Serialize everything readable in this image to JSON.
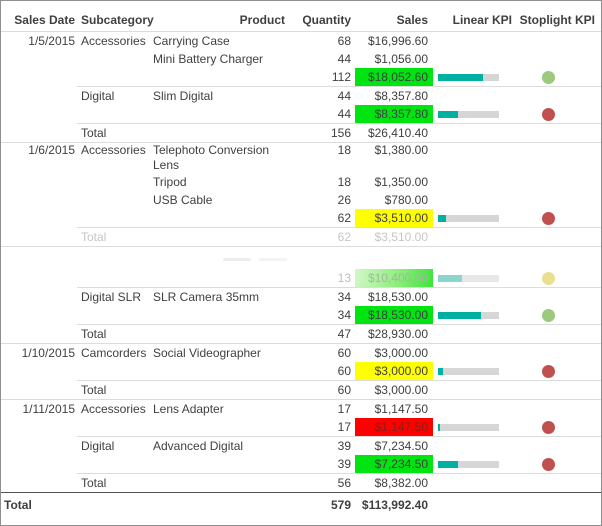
{
  "colors": {
    "text": "#3f3f3f",
    "faded_text": "#c6c6c6",
    "border": "#8f8f8f",
    "line": "#dcdcdc",
    "line_dark": "#4f4f4f",
    "cell_green": "#00e512",
    "cell_yellow": "#feff00",
    "cell_red": "#fe0000",
    "cell_red_text": "#8f1c13",
    "kpi_teal": "#00b0a3",
    "kpi_track": "#d6d6d6",
    "dot_green": "#9cc97c",
    "dot_red": "#c0504d",
    "dot_yellow": "#e9df90"
  },
  "chart_data": {
    "type": "table",
    "columns": [
      "Sales Date",
      "Subcategory",
      "Product",
      "Quantity",
      "Sales",
      "Linear KPI",
      "Stoplight KPI"
    ],
    "rows": [
      {
        "type": "data",
        "date": "1/5/2015",
        "subcategory": "Accessories",
        "product": "Carrying Case",
        "quantity": "68",
        "sales": "$16,996.60"
      },
      {
        "type": "data",
        "product": "Mini Battery Charger",
        "quantity": "44",
        "sales": "$1,056.00"
      },
      {
        "type": "subtotal",
        "quantity": "112",
        "sales": "$18,052.60",
        "sales_bg": "green",
        "linear_kpi": 0.73,
        "stoplight": "green"
      },
      {
        "type": "data",
        "subcategory": "Digital",
        "product": "Slim Digital",
        "quantity": "44",
        "sales": "$8,357.80",
        "rule_above": "indent"
      },
      {
        "type": "subtotal",
        "quantity": "44",
        "sales": "$8,357.80",
        "sales_bg": "green",
        "linear_kpi": 0.33,
        "stoplight": "red"
      },
      {
        "type": "total",
        "label": "Total",
        "quantity": "156",
        "sales": "$26,410.40",
        "rule_above": "indent"
      },
      {
        "type": "data",
        "date": "1/6/2015",
        "subcategory": "Accessories",
        "product": "Telephoto Conversion Lens",
        "quantity": "18",
        "sales": "$1,380.00",
        "wrap": true,
        "rule_above": "full"
      },
      {
        "type": "data",
        "product": "Tripod",
        "quantity": "18",
        "sales": "$1,350.00"
      },
      {
        "type": "data",
        "product": "USB Cable",
        "quantity": "26",
        "sales": "$780.00"
      },
      {
        "type": "subtotal",
        "quantity": "62",
        "sales": "$3,510.00",
        "sales_bg": "yellow",
        "linear_kpi": 0.13,
        "stoplight": "red"
      },
      {
        "type": "total",
        "label": "Total",
        "quantity": "62",
        "sales": "$3,510.00",
        "faded": true,
        "rule_above": "indent"
      },
      {
        "type": "ghost_blank",
        "rule_above": "full"
      },
      {
        "type": "subtotal",
        "quantity": "13",
        "sales": "$10,400.00",
        "sales_bg": "ghost",
        "linear_kpi": 0.4,
        "stoplight": "yellow",
        "ghost": true
      },
      {
        "type": "data",
        "subcategory": "Digital SLR",
        "product": "SLR Camera 35mm",
        "quantity": "34",
        "sales": "$18,530.00",
        "rule_above": "indent"
      },
      {
        "type": "subtotal",
        "quantity": "34",
        "sales": "$18,530.00",
        "sales_bg": "green",
        "linear_kpi": 0.7,
        "stoplight": "green"
      },
      {
        "type": "total",
        "label": "Total",
        "quantity": "47",
        "sales": "$28,930.00",
        "rule_above": "indent"
      },
      {
        "type": "data",
        "date": "1/10/2015",
        "subcategory": "Camcorders",
        "product": "Social Videographer",
        "quantity": "60",
        "sales": "$3,000.00",
        "rule_above": "full"
      },
      {
        "type": "subtotal",
        "quantity": "60",
        "sales": "$3,000.00",
        "sales_bg": "yellow",
        "linear_kpi": 0.08,
        "stoplight": "red"
      },
      {
        "type": "total",
        "label": "Total",
        "quantity": "60",
        "sales": "$3,000.00",
        "rule_above": "indent"
      },
      {
        "type": "data",
        "date": "1/11/2015",
        "subcategory": "Accessories",
        "product": "Lens Adapter",
        "quantity": "17",
        "sales": "$1,147.50",
        "rule_above": "full"
      },
      {
        "type": "subtotal",
        "quantity": "17",
        "sales": "$1,147.50",
        "sales_bg": "red",
        "linear_kpi": 0.04,
        "stoplight": "red"
      },
      {
        "type": "data",
        "subcategory": "Digital",
        "product": "Advanced Digital",
        "quantity": "39",
        "sales": "$7,234.50",
        "rule_above": "indent"
      },
      {
        "type": "subtotal",
        "quantity": "39",
        "sales": "$7,234.50",
        "sales_bg": "green",
        "linear_kpi": 0.32,
        "stoplight": "red"
      },
      {
        "type": "total",
        "label": "Total",
        "quantity": "56",
        "sales": "$8,382.00",
        "rule_above": "indent"
      }
    ],
    "grand_total": {
      "label": "Total",
      "quantity": "579",
      "sales": "$113,992.40"
    }
  }
}
